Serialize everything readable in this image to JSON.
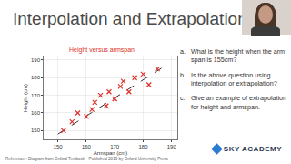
{
  "title": "Interpolation and Extrapolation",
  "chart_data": {
    "type": "scatter",
    "title": "Height versus armspan",
    "x_label": "Armspan (cm)",
    "y_label": "Height (cm)",
    "x": [
      152,
      155,
      157,
      160,
      162,
      163,
      165,
      167,
      168,
      170,
      172,
      173,
      175,
      177,
      180,
      182,
      185
    ],
    "values": [
      150,
      155,
      160,
      158,
      162,
      166,
      170,
      164,
      172,
      168,
      175,
      178,
      172,
      180,
      182,
      176,
      185
    ],
    "color": "#e0302a",
    "marker": "x",
    "fit_line": {
      "x": [
        150,
        188
      ],
      "values": [
        148,
        187
      ],
      "color": "#333333",
      "line_style": "dash"
    },
    "xlim": [
      145,
      192
    ],
    "ylim": [
      145,
      192
    ],
    "xticks": [
      150,
      160,
      170,
      180,
      190
    ],
    "yticks": [
      150,
      160,
      170,
      180,
      190
    ],
    "grid": true
  },
  "questions": [
    {
      "label": "a.",
      "text": "What is the height when the arm span is 155cm?"
    },
    {
      "label": "b.",
      "text": "Is the above question using interpolation or extrapolation?"
    },
    {
      "label": "c.",
      "text": "Give an example of extrapolation for height and armspan."
    }
  ],
  "logo": "SKY ACADEMY",
  "reference": "Reference : Diagram from Oxford Textbook - Published 2019 by Oxford University Press"
}
